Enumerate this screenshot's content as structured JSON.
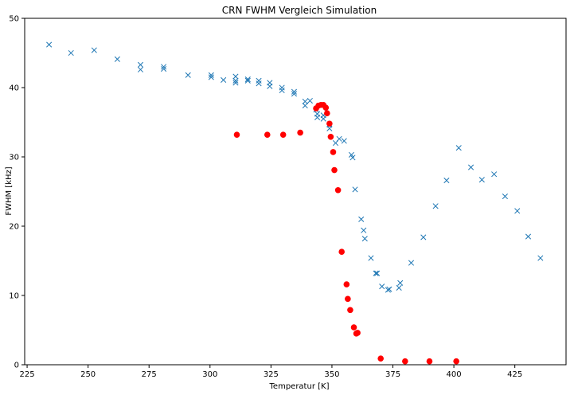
{
  "chart_data": {
    "type": "scatter",
    "title": "CRN FWHM Vergleich Simulation",
    "xlabel": "Temperatur [K]",
    "ylabel": "FWHM [kHz]",
    "xlim": [
      224,
      446
    ],
    "ylim": [
      0,
      50
    ],
    "xticks": [
      225,
      250,
      275,
      300,
      325,
      350,
      375,
      400,
      425
    ],
    "yticks": [
      0,
      10,
      20,
      30,
      40,
      50
    ],
    "grid": false,
    "series": [
      {
        "marker": "x",
        "color": "#1f77b4",
        "points": [
          [
            234.0,
            46.2
          ],
          [
            243.0,
            45.0
          ],
          [
            252.5,
            45.4
          ],
          [
            262.0,
            44.1
          ],
          [
            271.5,
            43.3
          ],
          [
            271.5,
            42.6
          ],
          [
            281.0,
            43.0
          ],
          [
            281.0,
            42.7
          ],
          [
            291.0,
            41.8
          ],
          [
            300.5,
            41.8
          ],
          [
            300.5,
            41.5
          ],
          [
            305.5,
            41.1
          ],
          [
            310.5,
            41.6
          ],
          [
            310.5,
            41.0
          ],
          [
            310.5,
            40.7
          ],
          [
            315.5,
            41.2
          ],
          [
            315.5,
            41.0
          ],
          [
            320.0,
            41.0
          ],
          [
            320.0,
            40.6
          ],
          [
            324.5,
            40.7
          ],
          [
            324.5,
            40.2
          ],
          [
            329.5,
            40.0
          ],
          [
            329.5,
            39.6
          ],
          [
            334.5,
            39.4
          ],
          [
            334.5,
            39.1
          ],
          [
            339.0,
            38.0
          ],
          [
            339.0,
            37.4
          ],
          [
            341.0,
            38.1
          ],
          [
            343.5,
            36.8
          ],
          [
            344.0,
            36.2
          ],
          [
            344.0,
            35.7
          ],
          [
            346.5,
            36.0
          ],
          [
            346.5,
            35.5
          ],
          [
            349.0,
            34.6
          ],
          [
            349.0,
            34.1
          ],
          [
            351.5,
            32.0
          ],
          [
            353.0,
            32.6
          ],
          [
            355.0,
            32.3
          ],
          [
            358.0,
            30.3
          ],
          [
            358.5,
            29.9
          ],
          [
            359.5,
            25.3
          ],
          [
            362.0,
            21.0
          ],
          [
            363.0,
            19.4
          ],
          [
            363.5,
            18.2
          ],
          [
            366.0,
            15.4
          ],
          [
            368.0,
            13.2
          ],
          [
            368.5,
            13.2
          ],
          [
            370.5,
            11.3
          ],
          [
            373.0,
            10.8
          ],
          [
            373.5,
            10.9
          ],
          [
            377.5,
            11.1
          ],
          [
            378.0,
            11.8
          ],
          [
            382.5,
            14.7
          ],
          [
            387.5,
            18.4
          ],
          [
            392.5,
            22.9
          ],
          [
            397.0,
            26.6
          ],
          [
            402.0,
            31.3
          ],
          [
            407.0,
            28.5
          ],
          [
            411.5,
            26.7
          ],
          [
            416.5,
            27.5
          ],
          [
            421.0,
            24.3
          ],
          [
            426.0,
            22.2
          ],
          [
            430.5,
            18.5
          ],
          [
            435.5,
            15.4
          ]
        ]
      },
      {
        "marker": "o",
        "color": "#ff0000",
        "points": [
          [
            311.0,
            33.2
          ],
          [
            323.5,
            33.2
          ],
          [
            330.0,
            33.2
          ],
          [
            337.0,
            33.5
          ],
          [
            343.5,
            37.0
          ],
          [
            344.5,
            37.4
          ],
          [
            345.5,
            37.5
          ],
          [
            346.5,
            37.5
          ],
          [
            347.5,
            37.1
          ],
          [
            348.0,
            36.3
          ],
          [
            349.0,
            34.8
          ],
          [
            349.5,
            32.9
          ],
          [
            350.5,
            30.7
          ],
          [
            351.0,
            28.1
          ],
          [
            352.5,
            25.2
          ],
          [
            354.0,
            16.3
          ],
          [
            356.0,
            11.6
          ],
          [
            356.5,
            9.5
          ],
          [
            357.5,
            7.9
          ],
          [
            359.0,
            5.4
          ],
          [
            360.0,
            4.5
          ],
          [
            360.5,
            4.6
          ],
          [
            370.0,
            0.9
          ],
          [
            380.0,
            0.5
          ],
          [
            390.0,
            0.5
          ],
          [
            401.0,
            0.5
          ]
        ]
      }
    ]
  }
}
